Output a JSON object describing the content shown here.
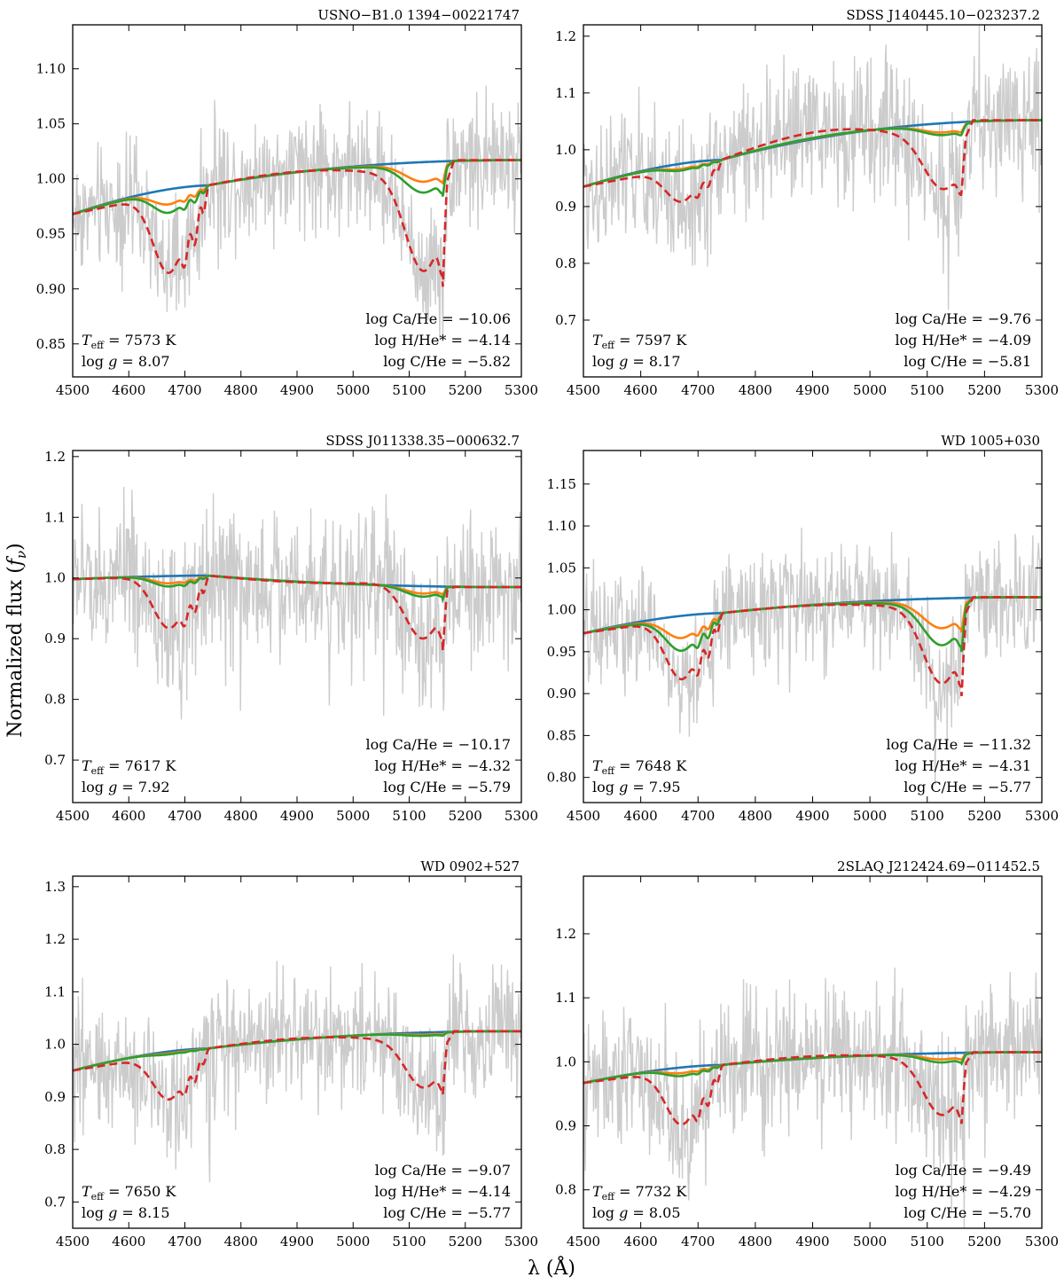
{
  "figure": {
    "ylabel": "Normalized flux",
    "ylabel_symbol": "f",
    "ylabel_sub": "ν",
    "xlabel": "λ (Å)"
  },
  "colors": {
    "observed": "#cccccc",
    "pure_he": "#1f77b4",
    "low_c": "#ff7f0e",
    "best_fit": "#2ca02c",
    "high_c": "#d62728"
  },
  "chart_data": [
    {
      "type": "line",
      "title": "USNO−B1.0 1394−00221747",
      "xlim": [
        4500,
        5300
      ],
      "ylim": [
        0.82,
        1.14
      ],
      "xticks": [
        4500,
        4600,
        4700,
        4800,
        4900,
        5000,
        5100,
        5200,
        5300
      ],
      "yticks": [
        0.85,
        0.9,
        0.95,
        1.0,
        1.05,
        1.1
      ],
      "ytick_labels": [
        "0.85",
        "0.90",
        "0.95",
        "1.00",
        "1.05",
        "1.10"
      ],
      "annotations": {
        "teff": "7573 K",
        "logg": "8.07",
        "ca": "log Ca/He = −10.06",
        "h": "log H/He* = −4.14",
        "c": "log C/He = −5.82"
      },
      "model": {
        "start": 0.968,
        "end": 1.017,
        "break": 0.994,
        "plateau": 1.006,
        "depth_c1": 0.072,
        "depth_c2": 0.084,
        "green_frac": 0.28,
        "orange_frac": 0.18
      },
      "noise": 0.04,
      "series": [
        {
          "name": "observed spectrum",
          "style": "grey"
        },
        {
          "name": "pure He model",
          "style": "blue"
        },
        {
          "name": "low C model",
          "style": "orange"
        },
        {
          "name": "best-fit C model",
          "style": "green"
        },
        {
          "name": "high C model",
          "style": "red dashed"
        }
      ]
    },
    {
      "type": "line",
      "title": "SDSS J140445.10−023237.2",
      "xlim": [
        4500,
        5300
      ],
      "ylim": [
        0.6,
        1.22
      ],
      "xticks": [
        4500,
        4600,
        4700,
        4800,
        4900,
        5000,
        5100,
        5200,
        5300
      ],
      "yticks": [
        0.7,
        0.8,
        0.9,
        1.0,
        1.1,
        1.2
      ],
      "ytick_labels": [
        "0.7",
        "0.8",
        "0.9",
        "1.0",
        "1.1",
        "1.2"
      ],
      "annotations": {
        "teff": "7597 K",
        "logg": "8.17",
        "ca": "log Ca/He = −9.76",
        "h": "log H/He* = −4.09",
        "c": "log C/He = −5.81"
      },
      "model": {
        "start": 0.935,
        "end": 1.052,
        "break": 0.982,
        "plateau": 1.026,
        "depth_c1": 0.06,
        "depth_c2": 0.08,
        "green_frac": 0.18,
        "orange_frac": 0.14
      },
      "noise": 0.09,
      "series": [
        {
          "name": "observed spectrum",
          "style": "grey"
        },
        {
          "name": "pure He model",
          "style": "blue"
        },
        {
          "name": "low C model",
          "style": "orange"
        },
        {
          "name": "best-fit C model",
          "style": "green"
        },
        {
          "name": "high C model",
          "style": "red dashed"
        }
      ]
    },
    {
      "type": "line",
      "title": "SDSS J011338.35−000632.7",
      "xlim": [
        4500,
        5300
      ],
      "ylim": [
        0.63,
        1.21
      ],
      "xticks": [
        4500,
        4600,
        4700,
        4800,
        4900,
        5000,
        5100,
        5200,
        5300
      ],
      "yticks": [
        0.7,
        0.8,
        0.9,
        1.0,
        1.1,
        1.2
      ],
      "ytick_labels": [
        "0.7",
        "0.8",
        "0.9",
        "1.0",
        "1.1",
        "1.2"
      ],
      "annotations": {
        "teff": "7617 K",
        "logg": "7.92",
        "ca": "log Ca/He = −10.17",
        "h": "log H/He* = −4.32",
        "c": "log C/He = −5.79"
      },
      "model": {
        "start": 0.998,
        "end": 0.985,
        "break": 1.004,
        "plateau": 0.995,
        "depth_c1": 0.085,
        "depth_c2": 0.095,
        "green_frac": 0.2,
        "orange_frac": 0.14
      },
      "noise": 0.09,
      "series": [
        {
          "name": "observed spectrum",
          "style": "grey"
        },
        {
          "name": "pure He model",
          "style": "blue"
        },
        {
          "name": "low C model",
          "style": "orange"
        },
        {
          "name": "best-fit C model",
          "style": "green"
        },
        {
          "name": "high C model",
          "style": "red dashed"
        }
      ]
    },
    {
      "type": "line",
      "title": "WD 1005+030",
      "xlim": [
        4500,
        5300
      ],
      "ylim": [
        0.77,
        1.19
      ],
      "xticks": [
        4500,
        4600,
        4700,
        4800,
        4900,
        5000,
        5100,
        5200,
        5300
      ],
      "yticks": [
        0.8,
        0.85,
        0.9,
        0.95,
        1.0,
        1.05,
        1.1,
        1.15
      ],
      "ytick_labels": [
        "0.80",
        "0.85",
        "0.90",
        "0.95",
        "1.00",
        "1.05",
        "1.10",
        "1.15"
      ],
      "annotations": {
        "teff": "7648 K",
        "logg": "7.95",
        "ca": "log Ca/He = −11.32",
        "h": "log H/He* = −4.31",
        "c": "log C/He = −5.77"
      },
      "model": {
        "start": 0.972,
        "end": 1.015,
        "break": 0.996,
        "plateau": 1.005,
        "depth_c1": 0.072,
        "depth_c2": 0.088,
        "green_frac": 0.55,
        "orange_frac": 0.35
      },
      "noise": 0.05,
      "series": [
        {
          "name": "observed spectrum",
          "style": "grey"
        },
        {
          "name": "pure He model",
          "style": "blue"
        },
        {
          "name": "low C model",
          "style": "orange"
        },
        {
          "name": "best-fit C model",
          "style": "green"
        },
        {
          "name": "high C model",
          "style": "red dashed"
        }
      ]
    },
    {
      "type": "line",
      "title": "WD 0902+527",
      "xlim": [
        4500,
        5300
      ],
      "ylim": [
        0.65,
        1.32
      ],
      "xticks": [
        4500,
        4600,
        4700,
        4800,
        4900,
        5000,
        5100,
        5200,
        5300
      ],
      "yticks": [
        0.7,
        0.8,
        0.9,
        1.0,
        1.1,
        1.2,
        1.3
      ],
      "ytick_labels": [
        "0.7",
        "0.8",
        "0.9",
        "1.0",
        "1.1",
        "1.2",
        "1.3"
      ],
      "annotations": {
        "teff": "7650 K",
        "logg": "8.15",
        "ca": "log Ca/He = −9.07",
        "h": "log H/He* = −4.14",
        "c": "log C/He = −5.77"
      },
      "model": {
        "start": 0.95,
        "end": 1.025,
        "break": 0.992,
        "plateau": 1.01,
        "depth_c1": 0.085,
        "depth_c2": 0.085,
        "green_frac": 0.06,
        "orange_frac": 0.04
      },
      "noise": 0.09,
      "series": [
        {
          "name": "observed spectrum",
          "style": "grey"
        },
        {
          "name": "pure He model",
          "style": "blue"
        },
        {
          "name": "low C model",
          "style": "orange"
        },
        {
          "name": "best-fit C model",
          "style": "green"
        },
        {
          "name": "high C model",
          "style": "red dashed"
        }
      ]
    },
    {
      "type": "line",
      "title": "2SLAQ J212424.69−011452.5",
      "xlim": [
        4500,
        5300
      ],
      "ylim": [
        0.74,
        1.29
      ],
      "xticks": [
        4500,
        4600,
        4700,
        4800,
        4900,
        5000,
        5100,
        5200,
        5300
      ],
      "yticks": [
        0.8,
        0.9,
        1.0,
        1.1,
        1.2
      ],
      "ytick_labels": [
        "0.8",
        "0.9",
        "1.0",
        "1.1",
        "1.2"
      ],
      "annotations": {
        "teff": "7732 K",
        "logg": "8.05",
        "ca": "log Ca/He = −9.49",
        "h": "log H/He* = −4.29",
        "c": "log C/He = −5.70"
      },
      "model": {
        "start": 0.967,
        "end": 1.015,
        "break": 0.995,
        "plateau": 1.008,
        "depth_c1": 0.085,
        "depth_c2": 0.085,
        "green_frac": 0.15,
        "orange_frac": 0.1
      },
      "noise": 0.08,
      "series": [
        {
          "name": "observed spectrum",
          "style": "grey"
        },
        {
          "name": "pure He model",
          "style": "blue"
        },
        {
          "name": "low C model",
          "style": "orange"
        },
        {
          "name": "best-fit C model",
          "style": "green"
        },
        {
          "name": "high C model",
          "style": "red dashed"
        }
      ]
    }
  ]
}
